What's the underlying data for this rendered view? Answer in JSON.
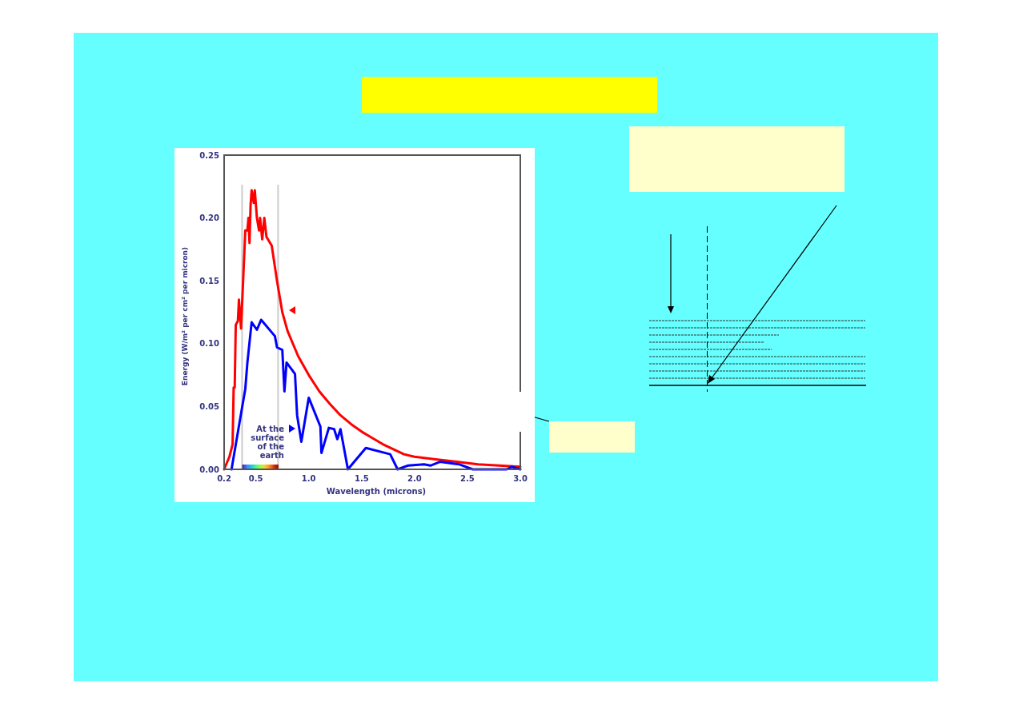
{
  "chart_data": {
    "type": "line",
    "xlabel": "Wavelength (microns)",
    "ylabel": "Energy (W/m² per cm² per micron)",
    "xlim": [
      0.2,
      3.0
    ],
    "ylim": [
      0,
      0.25
    ],
    "xticks": [
      {
        "value": 0.2,
        "label": "0.2"
      },
      {
        "value": 0.5,
        "label": "0.5"
      },
      {
        "value": 1.0,
        "label": "1.0"
      },
      {
        "value": 1.5,
        "label": "1.5"
      },
      {
        "value": 2.0,
        "label": "2.0"
      },
      {
        "value": 2.5,
        "label": "2.5"
      },
      {
        "value": 3.0,
        "label": "3.0"
      }
    ],
    "yticks": [
      {
        "value": 0,
        "label": "0.00"
      },
      {
        "value": 0.05,
        "label": "0.05"
      },
      {
        "value": 0.1,
        "label": "0.10"
      },
      {
        "value": 0.15,
        "label": "0.15"
      },
      {
        "value": 0.2,
        "label": "0.20"
      },
      {
        "value": 0.25,
        "label": "0.25"
      }
    ],
    "grid": false,
    "marker": "none",
    "line_style": "solid",
    "series": [
      {
        "color": "#ff0000",
        "x": [
          0.2,
          0.25,
          0.28,
          0.29,
          0.3,
          0.31,
          0.33,
          0.34,
          0.36,
          0.4,
          0.42,
          0.43,
          0.44,
          0.45,
          0.46,
          0.48,
          0.49,
          0.51,
          0.53,
          0.54,
          0.56,
          0.58,
          0.6,
          0.65,
          0.7,
          0.75,
          0.8,
          0.9,
          1.0,
          1.1,
          1.2,
          1.3,
          1.4,
          1.5,
          1.6,
          1.7,
          1.8,
          1.9,
          2.0,
          2.2,
          2.4,
          2.6,
          2.8,
          3.0
        ],
        "values": [
          0.0,
          0.01,
          0.02,
          0.065,
          0.065,
          0.115,
          0.118,
          0.135,
          0.112,
          0.19,
          0.19,
          0.2,
          0.18,
          0.21,
          0.222,
          0.212,
          0.222,
          0.2,
          0.19,
          0.2,
          0.183,
          0.2,
          0.185,
          0.178,
          0.15,
          0.125,
          0.11,
          0.09,
          0.075,
          0.062,
          0.052,
          0.043,
          0.036,
          0.03,
          0.025,
          0.02,
          0.016,
          0.012,
          0.01,
          0.008,
          0.006,
          0.004,
          0.003,
          0.002
        ]
      },
      {
        "color": "#0000ff",
        "x": [
          0.27,
          0.4,
          0.42,
          0.46,
          0.51,
          0.55,
          0.68,
          0.7,
          0.75,
          0.77,
          0.79,
          0.87,
          0.89,
          0.93,
          1.0,
          1.11,
          1.12,
          1.19,
          1.24,
          1.27,
          1.3,
          1.37,
          1.43,
          1.54,
          1.77,
          1.84,
          1.94,
          2.09,
          2.15,
          2.24,
          2.42,
          2.55,
          2.87,
          2.92,
          3.0
        ],
        "values": [
          0.0,
          0.064,
          0.085,
          0.117,
          0.111,
          0.119,
          0.106,
          0.097,
          0.095,
          0.062,
          0.085,
          0.076,
          0.043,
          0.022,
          0.057,
          0.034,
          0.013,
          0.033,
          0.032,
          0.024,
          0.032,
          0.0,
          0.006,
          0.017,
          0.012,
          0.0,
          0.003,
          0.004,
          0.003,
          0.006,
          0.004,
          0.0,
          0.0,
          0.002,
          0.0
        ]
      }
    ],
    "ref_lines": [
      {
        "axis": "x",
        "value": 0.37,
        "color": "#cccccc"
      },
      {
        "axis": "x",
        "value": 0.71,
        "color": "#cccccc"
      }
    ],
    "annotations": [
      "At the surface of the earth"
    ]
  }
}
